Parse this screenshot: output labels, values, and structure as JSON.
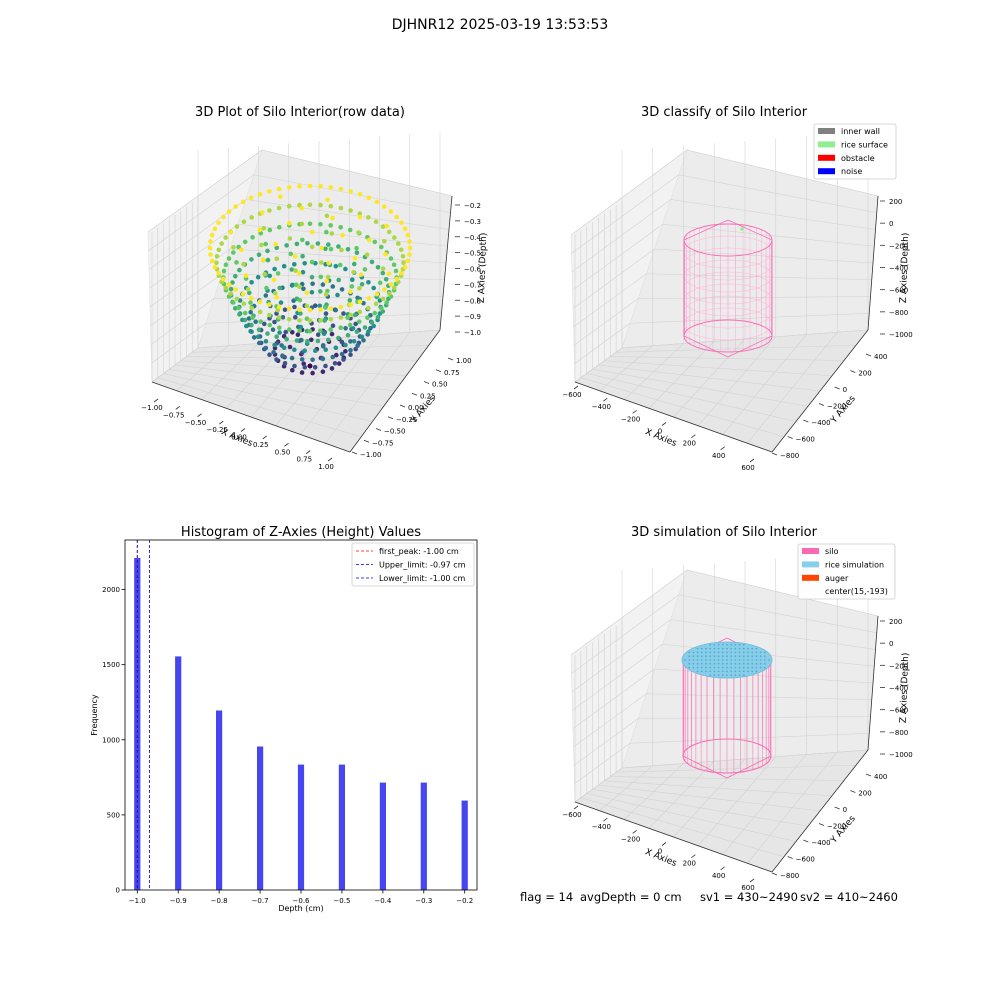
{
  "suptitle": "DJHNR12 2025-03-19 13:53:53",
  "footer": {
    "flag": "flag = 14",
    "avg_depth": "avgDepth = 0 cm",
    "sv1": "sv1 = 430~2490",
    "sv2": "sv2 = 410~2460"
  },
  "colors": {
    "inner_wall": "#808080",
    "rice_surface": "#90ee90",
    "obstacle": "#ff0000",
    "noise": "#0000ff",
    "silo": "#ff69b4",
    "rice_simulation": "#87ceeb",
    "auger": "#ff4500",
    "hist_bar": "#4646f0",
    "first_peak": "#ff0000",
    "limit_lines": "#0000cd"
  },
  "chart_data": [
    {
      "type": "scatter",
      "projection": "3d",
      "title": "3D Plot of Silo Interior(row data)",
      "xlabel": "X Axies",
      "ylabel": "Y Axies",
      "zlabel": "Z Axies (Depth)",
      "xlim": [
        -1.0,
        1.0
      ],
      "ylim": [
        -1.0,
        1.0
      ],
      "zlim": [
        -1.0,
        -0.2
      ],
      "xticks": [
        "−1.00",
        "−0.75",
        "−0.50",
        "−0.25",
        "0.00",
        "0.25",
        "0.50",
        "0.75",
        "1.00"
      ],
      "yticks": [
        "−1.00",
        "−0.75",
        "−0.50",
        "−0.25",
        "0.00",
        "0.25",
        "0.50",
        "0.75",
        "1.00"
      ],
      "zticks": [
        "−1.0",
        "−0.9",
        "−0.8",
        "−0.7",
        "−0.6",
        "−0.5",
        "−0.4",
        "−0.3",
        "−0.2"
      ],
      "surface": "bowl z = -1 + 0.8*(x^2+y^2), points colored by depth (viridis)",
      "depth_levels": [
        -1.0,
        -0.9,
        -0.8,
        -0.7,
        -0.6,
        -0.5,
        -0.4,
        -0.3,
        -0.2
      ]
    },
    {
      "type": "scatter",
      "projection": "3d",
      "title": "3D classify of Silo Interior",
      "xlabel": "X Axies",
      "ylabel": "Y Axies",
      "zlabel": "Z Axies (Depth)",
      "xlim": [
        -600,
        600
      ],
      "ylim": [
        -800,
        400
      ],
      "zlim": [
        -1000,
        200
      ],
      "xticks": [
        "−600",
        "−400",
        "−200",
        "0",
        "200",
        "400",
        "600"
      ],
      "yticks": [
        "−800",
        "−600",
        "−400",
        "−200",
        "0",
        "200",
        "400"
      ],
      "zticks": [
        "−1000",
        "−800",
        "−600",
        "−400",
        "−200",
        "0",
        "200"
      ],
      "legend_location": "top-right",
      "legend": [
        {
          "label": "inner wall",
          "color": "#808080"
        },
        {
          "label": "rice surface",
          "color": "#90ee90"
        },
        {
          "label": "obstacle",
          "color": "#ff0000"
        },
        {
          "label": "noise",
          "color": "#0000ff"
        }
      ]
    },
    {
      "type": "bar",
      "title": "Histogram of Z-Axies (Height) Values",
      "xlabel": "Depth (cm)",
      "ylabel": "Frequency",
      "xlim": [
        -1.03,
        -0.17
      ],
      "ylim": [
        0,
        2330
      ],
      "xticks": [
        "−1.0",
        "−0.9",
        "−0.8",
        "−0.7",
        "−0.6",
        "−0.5",
        "−0.4",
        "−0.3",
        "−0.2"
      ],
      "yticks": [
        "0",
        "500",
        "1000",
        "1500",
        "2000"
      ],
      "x": [
        -1.0,
        -0.9,
        -0.8,
        -0.7,
        -0.6,
        -0.5,
        -0.4,
        -0.3,
        -0.2
      ],
      "values": [
        2210,
        1555,
        1195,
        955,
        835,
        835,
        715,
        715,
        595
      ],
      "vlines": [
        {
          "label": "first_peak: -1.00 cm",
          "x": -1.0,
          "color": "#ff0000"
        },
        {
          "label": "Upper_limit: -0.97 cm",
          "x": -0.97,
          "color": "#0000cd"
        },
        {
          "label": "Lower_limit: -1.00 cm",
          "x": -1.0,
          "color": "#0000cd"
        }
      ],
      "legend_location": "top-right"
    },
    {
      "type": "scatter",
      "projection": "3d",
      "title": "3D simulation of Silo Interior",
      "xlabel": "X Axies",
      "ylabel": "Y Axies",
      "zlabel": "Z Axies (Depth)",
      "xlim": [
        -600,
        600
      ],
      "ylim": [
        -800,
        400
      ],
      "zlim": [
        -1000,
        200
      ],
      "xticks": [
        "−600",
        "−400",
        "−200",
        "0",
        "200",
        "400",
        "600"
      ],
      "yticks": [
        "−800",
        "−600",
        "−400",
        "−200",
        "0",
        "200",
        "400"
      ],
      "zticks": [
        "−1000",
        "−800",
        "−600",
        "−400",
        "−200",
        "0",
        "200"
      ],
      "legend_location": "top-right",
      "legend": [
        {
          "label": "silo",
          "color": "#ff69b4"
        },
        {
          "label": "rice simulation",
          "color": "#87ceeb"
        },
        {
          "label": "auger",
          "color": "#ff4500"
        },
        {
          "label": "center(15,-193)",
          "color": ""
        }
      ]
    }
  ]
}
